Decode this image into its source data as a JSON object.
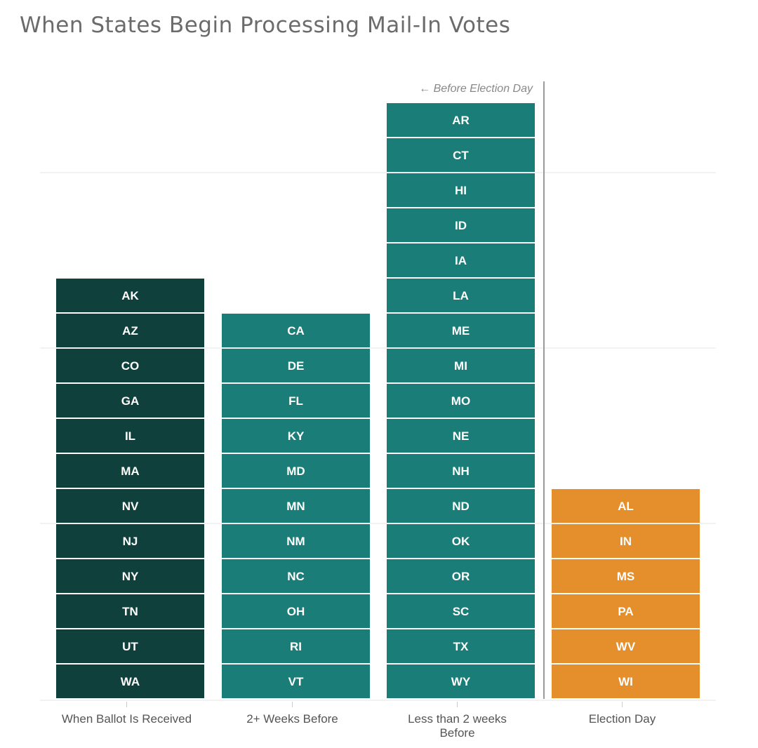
{
  "chart_data": {
    "type": "bar",
    "title": "When States Begin Processing Mail-In Votes",
    "categories": [
      {
        "lines": [
          "When Ballot Is Received"
        ],
        "color": "#10403c",
        "states": [
          "AK",
          "AZ",
          "CO",
          "GA",
          "IL",
          "MA",
          "NV",
          "NJ",
          "NY",
          "TN",
          "UT",
          "WA"
        ]
      },
      {
        "lines": [
          "2+ Weeks Before"
        ],
        "color": "#1b7d78",
        "states": [
          "CA",
          "DE",
          "FL",
          "KY",
          "MD",
          "MN",
          "NM",
          "NC",
          "OH",
          "RI",
          "VT"
        ]
      },
      {
        "lines": [
          "Less than 2 weeks",
          "Before"
        ],
        "color": "#1b7d78",
        "states": [
          "AR",
          "CT",
          "HI",
          "ID",
          "IA",
          "LA",
          "ME",
          "MI",
          "MO",
          "NE",
          "NH",
          "ND",
          "OK",
          "OR",
          "SC",
          "TX",
          "WY"
        ]
      },
      {
        "lines": [
          "Election Day"
        ],
        "color": "#e58f2c",
        "states": [
          "AL",
          "IN",
          "MS",
          "PA",
          "WV",
          "WI"
        ]
      }
    ],
    "values": [
      12,
      11,
      17,
      6
    ],
    "ylim": [
      0,
      17
    ],
    "gridlines_at": [
      5,
      10,
      15
    ],
    "annotation": {
      "text": "← Before Election Day",
      "between_categories": [
        2,
        3
      ]
    },
    "xlabel": "",
    "ylabel": ""
  }
}
